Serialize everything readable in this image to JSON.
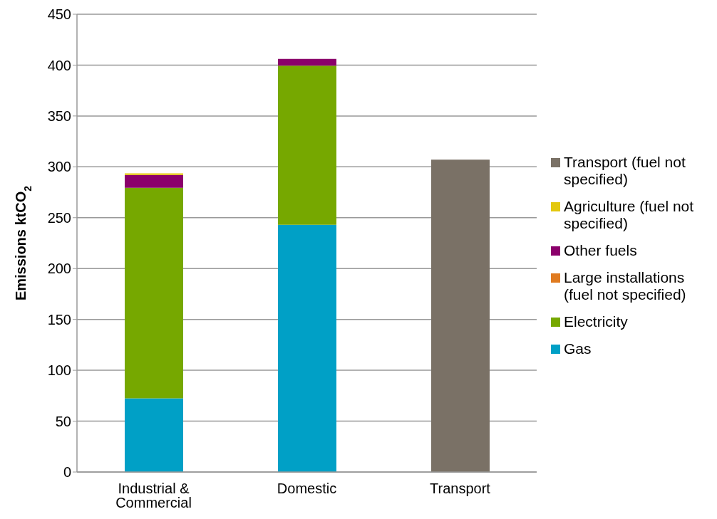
{
  "chart_data": {
    "type": "bar",
    "stacked": true,
    "ylabel": "Emissions ktCO$_{2}$",
    "categories": [
      "Industrial & Commercial",
      "Domestic",
      "Transport"
    ],
    "series": [
      {
        "name": "Gas",
        "color": "#00a0c6",
        "values": [
          72.5,
          243,
          0
        ]
      },
      {
        "name": "Electricity",
        "color": "#76a800",
        "values": [
          207,
          156.5,
          0
        ]
      },
      {
        "name": "Large installations (fuel not specified)",
        "color": "#e07b20",
        "values": [
          0,
          0,
          0
        ]
      },
      {
        "name": "Other fuels",
        "color": "#8b006b",
        "values": [
          12.5,
          6.5,
          0
        ]
      },
      {
        "name": "Agriculture (fuel not specified)",
        "color": "#e3c80e",
        "values": [
          1.5,
          0,
          0
        ]
      },
      {
        "name": "Transport (fuel not specified)",
        "color": "#7a7166",
        "values": [
          0,
          0,
          307
        ]
      }
    ],
    "ylim": [
      0,
      450
    ],
    "yticks": [
      0,
      50,
      100,
      150,
      200,
      250,
      300,
      350,
      400,
      450
    ],
    "grid": "y",
    "legend": "right"
  }
}
